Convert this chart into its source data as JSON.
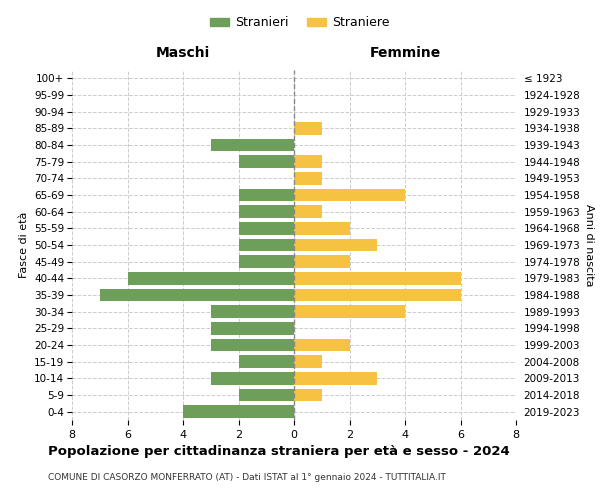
{
  "age_groups": [
    "100+",
    "95-99",
    "90-94",
    "85-89",
    "80-84",
    "75-79",
    "70-74",
    "65-69",
    "60-64",
    "55-59",
    "50-54",
    "45-49",
    "40-44",
    "35-39",
    "30-34",
    "25-29",
    "20-24",
    "15-19",
    "10-14",
    "5-9",
    "0-4"
  ],
  "birth_years": [
    "≤ 1923",
    "1924-1928",
    "1929-1933",
    "1934-1938",
    "1939-1943",
    "1944-1948",
    "1949-1953",
    "1954-1958",
    "1959-1963",
    "1964-1968",
    "1969-1973",
    "1974-1978",
    "1979-1983",
    "1984-1988",
    "1989-1993",
    "1994-1998",
    "1999-2003",
    "2004-2008",
    "2009-2013",
    "2014-2018",
    "2019-2023"
  ],
  "males": [
    0,
    0,
    0,
    0,
    3,
    2,
    0,
    2,
    2,
    2,
    2,
    2,
    6,
    7,
    3,
    3,
    3,
    2,
    3,
    2,
    4
  ],
  "females": [
    0,
    0,
    0,
    1,
    0,
    1,
    1,
    4,
    1,
    2,
    3,
    2,
    6,
    6,
    4,
    0,
    2,
    1,
    3,
    1,
    0
  ],
  "male_color": "#6d9e5a",
  "female_color": "#f5c242",
  "background_color": "#ffffff",
  "grid_color": "#cccccc",
  "center_line_color": "#888888",
  "title": "Popolazione per cittadinanza straniera per età e sesso - 2024",
  "subtitle": "COMUNE DI CASORZO MONFERRATO (AT) - Dati ISTAT al 1° gennaio 2024 - TUTTITALIA.IT",
  "ylabel_left": "Fasce di età",
  "ylabel_right": "Anni di nascita",
  "xlabel_left": "Maschi",
  "xlabel_right": "Femmine",
  "legend_male": "Stranieri",
  "legend_female": "Straniere",
  "xlim": 8,
  "figsize": [
    6.0,
    5.0
  ],
  "dpi": 100
}
